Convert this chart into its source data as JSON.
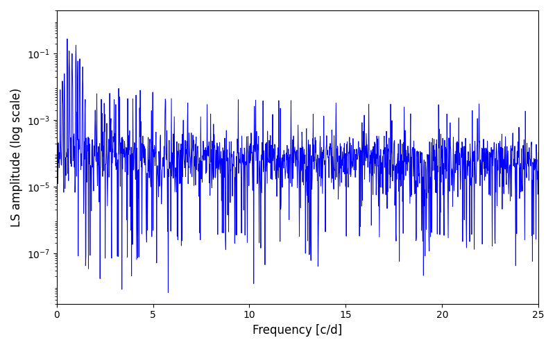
{
  "xlabel": "Frequency [c/d]",
  "ylabel": "LS amplitude (log scale)",
  "line_color": "#0000FF",
  "xlim": [
    0,
    25
  ],
  "ylim": [
    3e-09,
    2.0
  ],
  "xticks": [
    0,
    5,
    10,
    15,
    20,
    25
  ],
  "ytick_powers": [
    -7,
    -5,
    -3,
    -1
  ],
  "freq_max": 25.0,
  "n_points": 1500,
  "seed": 77,
  "line_width": 0.7,
  "figsize": [
    8.0,
    5.0
  ],
  "dpi": 100,
  "background_color": "#ffffff"
}
